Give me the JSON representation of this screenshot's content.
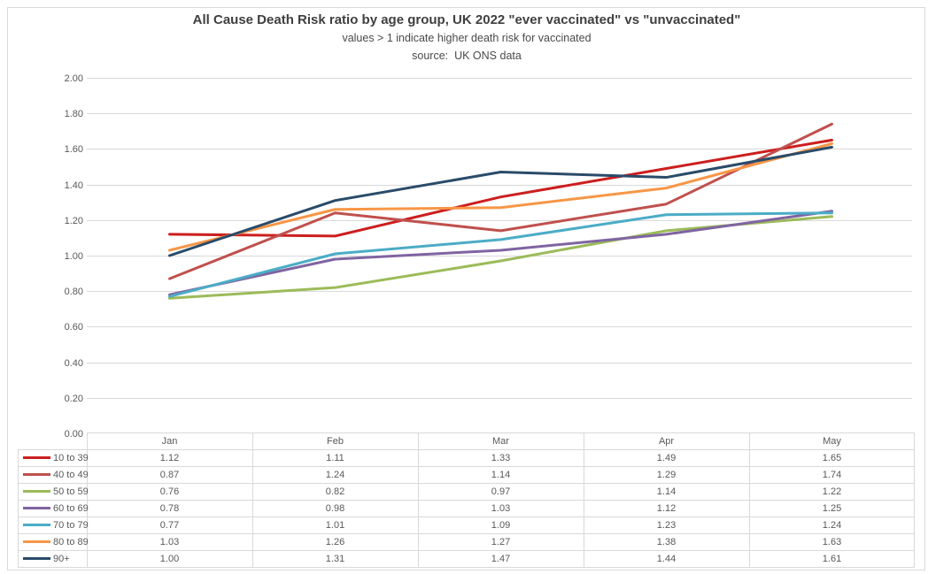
{
  "header": {
    "title": "All Cause Death Risk ratio by age group, UK 2022 \"ever vaccinated\" vs \"unvaccinated\"",
    "subtitle": "values > 1 indicate higher death risk for vaccinated",
    "source": "source:  UK ONS data"
  },
  "chart_data": {
    "type": "line",
    "title": "All Cause Death Risk ratio by age group, UK 2022 \"ever vaccinated\" vs \"unvaccinated\"",
    "xlabel": "",
    "ylabel": "",
    "categories": [
      "Jan",
      "Feb",
      "Mar",
      "Apr",
      "May"
    ],
    "series": [
      {
        "name": "10 to 39",
        "color": "#cd1e1e",
        "values": [
          1.12,
          1.11,
          1.33,
          1.49,
          1.65
        ]
      },
      {
        "name": "40 to 49",
        "color": "#c0504d",
        "values": [
          0.87,
          1.24,
          1.14,
          1.29,
          1.74
        ]
      },
      {
        "name": "50 to 59",
        "color": "#9bbb59",
        "values": [
          0.76,
          0.82,
          0.97,
          1.14,
          1.22
        ]
      },
      {
        "name": "60 to 69",
        "color": "#8064a2",
        "values": [
          0.78,
          0.98,
          1.03,
          1.12,
          1.25
        ]
      },
      {
        "name": "70 to 79",
        "color": "#4bacc6",
        "values": [
          0.77,
          1.01,
          1.09,
          1.23,
          1.24
        ]
      },
      {
        "name": "80 to 89",
        "color": "#f79646",
        "values": [
          1.03,
          1.26,
          1.27,
          1.38,
          1.63
        ]
      },
      {
        "name": "90+",
        "color": "#2a4b6a",
        "values": [
          1.0,
          1.31,
          1.47,
          1.44,
          1.61
        ]
      }
    ],
    "ylim": [
      0,
      2
    ],
    "ytick_step": 0.2,
    "ytick_labels": [
      "0.00",
      "0.20",
      "0.40",
      "0.60",
      "0.80",
      "1.00",
      "1.20",
      "1.40",
      "1.60",
      "1.80",
      "2.00"
    ],
    "grid": true,
    "legend_position": "left-of-data-table",
    "data_table_shown": true,
    "colors": {
      "grid_line": "#d9d9d9",
      "table_border": "#d9d9d9",
      "axis_text": "#595959",
      "table_text": "#595959",
      "title_text": "#3f3f3f"
    }
  }
}
